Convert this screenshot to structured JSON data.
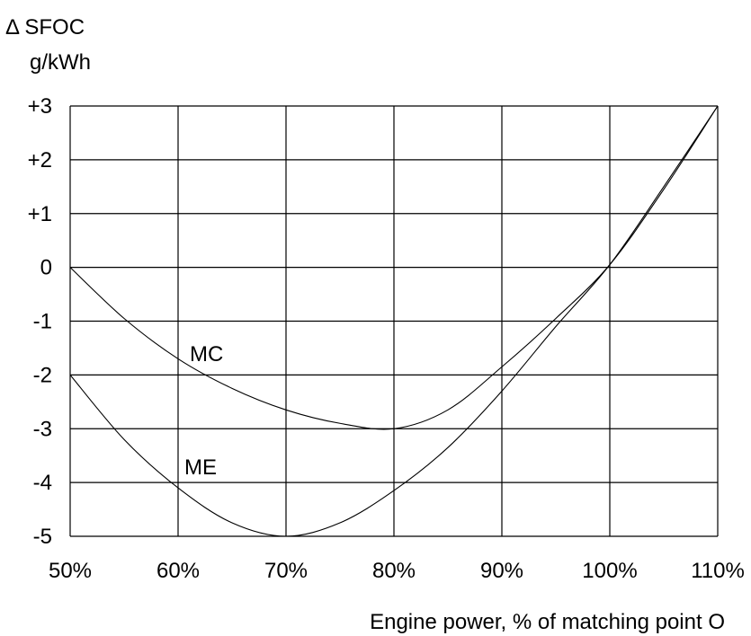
{
  "chart_data": {
    "type": "line",
    "ylabel_line1": "Δ SFOC",
    "ylabel_line2": "g/kWh",
    "xlabel": "Engine power, % of matching point O",
    "x_ticks": [
      "50%",
      "60%",
      "70%",
      "80%",
      "90%",
      "100%",
      "110%"
    ],
    "y_ticks": [
      "+3",
      "+2",
      "+1",
      "0",
      "-1",
      "-2",
      "-3",
      "-4",
      "-5"
    ],
    "xlim": [
      50,
      110
    ],
    "ylim": [
      -5,
      3
    ],
    "grid": true,
    "series": [
      {
        "name": "MC",
        "x": [
          50,
          55,
          60,
          65,
          70,
          75,
          80,
          85,
          90,
          95,
          100,
          105,
          110
        ],
        "y": [
          0,
          -0.95,
          -1.7,
          -2.25,
          -2.65,
          -2.9,
          -3.0,
          -2.65,
          -1.85,
          -0.95,
          0.05,
          1.45,
          3.0
        ]
      },
      {
        "name": "ME",
        "x": [
          50,
          55,
          60,
          65,
          70,
          75,
          80,
          85,
          90,
          95,
          100,
          105,
          110
        ],
        "y": [
          -2,
          -3.2,
          -4.1,
          -4.75,
          -5.0,
          -4.75,
          -4.15,
          -3.35,
          -2.3,
          -1.1,
          0.05,
          1.5,
          3.0
        ]
      }
    ]
  }
}
